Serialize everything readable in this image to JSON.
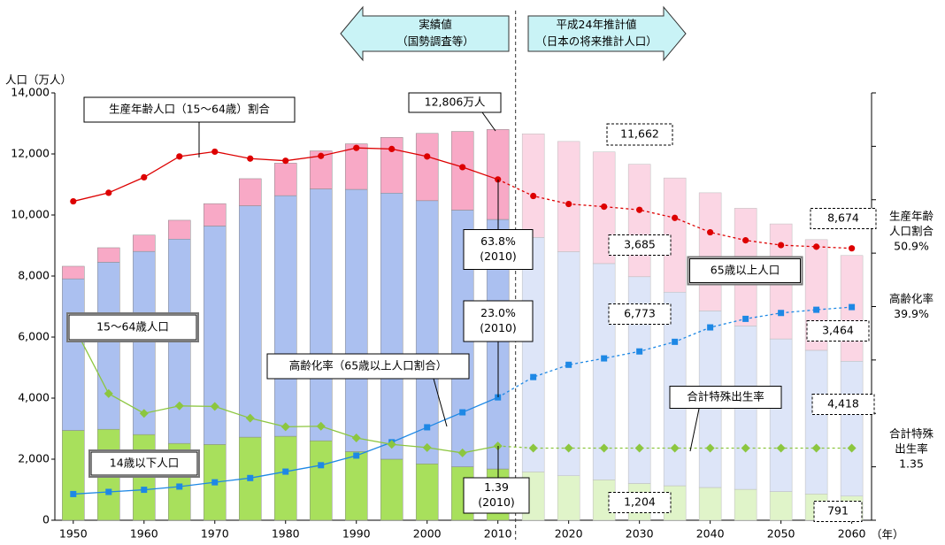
{
  "chart_data": {
    "type": "bar",
    "stacked": true,
    "y_label": "人口（万人）",
    "x_label": "（年）",
    "x": [
      1950,
      1955,
      1960,
      1965,
      1970,
      1975,
      1980,
      1985,
      1990,
      1995,
      2000,
      2005,
      2010,
      2015,
      2020,
      2025,
      2030,
      2035,
      2040,
      2045,
      2050,
      2055,
      2060
    ],
    "xlim": [
      1947.4,
      2062.8
    ],
    "xticks": [
      1950,
      1960,
      1970,
      1980,
      1990,
      2000,
      2010,
      2020,
      2030,
      2040,
      2050,
      2060
    ],
    "ylim": [
      0,
      14000
    ],
    "yticks": [
      0,
      {
        "value": 2000,
        "label": "2,000"
      },
      {
        "value": 4000,
        "label": "4,000"
      },
      {
        "value": 6000,
        "label": "6,000"
      },
      {
        "value": 8000,
        "label": "8,000"
      },
      {
        "value": 10000,
        "label": "10,000"
      },
      {
        "value": 12000,
        "label": "12,000"
      },
      {
        "value": 14000,
        "label": "14,000"
      }
    ],
    "y2lim": [
      0,
      80
    ],
    "y2ticks": [
      0,
      10,
      20,
      30,
      40,
      50,
      60,
      70,
      80
    ],
    "y3lim": [
      0,
      8
    ],
    "divider_x": 2012.5,
    "series": [
      {
        "name": "14歳以下人口",
        "color": "#a8e05c",
        "projection_color": "#e0f4c9",
        "values": [
          2943,
          2980,
          2807,
          2517,
          2482,
          2722,
          2751,
          2603,
          2249,
          2001,
          1847,
          1752,
          1680,
          1583,
          1457,
          1324,
          1204,
          1129,
          1073,
          1012,
          939,
          861,
          791
        ],
        "value_labels": [
          null,
          null,
          null,
          null,
          null,
          null,
          null,
          null,
          null,
          null,
          null,
          null,
          null,
          null,
          null,
          null,
          "1,204",
          null,
          null,
          null,
          null,
          null,
          "791"
        ]
      },
      {
        "name": "15～64歳人口",
        "color": "#abc0f0",
        "projection_color": "#dde5f8",
        "values": [
          4966,
          5473,
          6000,
          6693,
          7157,
          7581,
          7883,
          8251,
          8590,
          8716,
          8622,
          8409,
          8174,
          7682,
          7341,
          7085,
          6773,
          6343,
          5787,
          5353,
          5001,
          4706,
          4418
        ],
        "value_labels": [
          null,
          null,
          null,
          null,
          null,
          null,
          null,
          null,
          null,
          null,
          null,
          null,
          null,
          null,
          null,
          null,
          "6,773",
          null,
          null,
          null,
          null,
          null,
          "4,418"
        ]
      },
      {
        "name": "65歳以上人口",
        "color": "#f8a9c6",
        "projection_color": "#fbd6e4",
        "values": [
          411,
          475,
          535,
          618,
          733,
          887,
          1065,
          1247,
          1493,
          1826,
          2204,
          2576,
          2948,
          3395,
          3612,
          3657,
          3685,
          3741,
          3868,
          3856,
          3768,
          3626,
          3464
        ],
        "value_labels": [
          null,
          null,
          null,
          null,
          null,
          null,
          null,
          null,
          null,
          null,
          null,
          null,
          null,
          null,
          null,
          null,
          "3,685",
          null,
          null,
          null,
          null,
          null,
          "3,464"
        ]
      },
      {
        "name": "生産年齢人口（15～64歳）割合",
        "type": "line",
        "axis": "y2",
        "color": "#dd0000",
        "marker": "circle",
        "values": [
          59.7,
          61.3,
          64.2,
          68.1,
          69.0,
          67.7,
          67.3,
          68.2,
          69.7,
          69.5,
          68.1,
          66.1,
          63.8,
          60.7,
          59.2,
          58.7,
          58.1,
          56.6,
          53.9,
          52.4,
          51.5,
          51.2,
          50.9
        ]
      },
      {
        "name": "高齢化率（65歳以上人口割合）",
        "type": "line",
        "axis": "y2",
        "color": "#1e88e5",
        "marker": "square",
        "values": [
          4.9,
          5.3,
          5.7,
          6.3,
          7.1,
          7.9,
          9.1,
          10.3,
          12.1,
          14.6,
          17.4,
          20.2,
          23.0,
          26.8,
          29.1,
          30.3,
          31.6,
          33.4,
          36.1,
          37.7,
          38.8,
          39.4,
          39.9
        ]
      },
      {
        "name": "合計特殊出生率",
        "type": "line",
        "axis": "y3",
        "color": "#8cc63f",
        "marker": "diamond",
        "values": [
          3.65,
          2.37,
          2.0,
          2.14,
          2.13,
          1.91,
          1.75,
          1.76,
          1.54,
          1.42,
          1.36,
          1.26,
          1.39,
          1.35,
          1.35,
          1.35,
          1.35,
          1.35,
          1.35,
          1.35,
          1.35,
          1.35,
          1.35
        ]
      }
    ],
    "annotations": [
      {
        "lines": [
          "実績値",
          "（国勢調査等）"
        ]
      },
      {
        "lines": [
          "平成24年推計値",
          "（日本の将来推計人口）"
        ]
      },
      {
        "lines": [
          "12,806万人"
        ]
      },
      {
        "lines": [
          "11,662"
        ]
      },
      {
        "lines": [
          "8,674"
        ]
      },
      {
        "lines": [
          "63.8%",
          "(2010)"
        ]
      },
      {
        "lines": [
          "23.0%",
          "(2010)"
        ]
      },
      {
        "lines": [
          "1.39",
          "(2010)"
        ]
      },
      {
        "lines": [
          "生産年齢",
          "人口割合",
          "50.9%"
        ]
      },
      {
        "lines": [
          "高齢化率",
          "39.9%"
        ]
      },
      {
        "lines": [
          "合計特殊",
          "出生率",
          "1.35"
        ]
      }
    ]
  }
}
